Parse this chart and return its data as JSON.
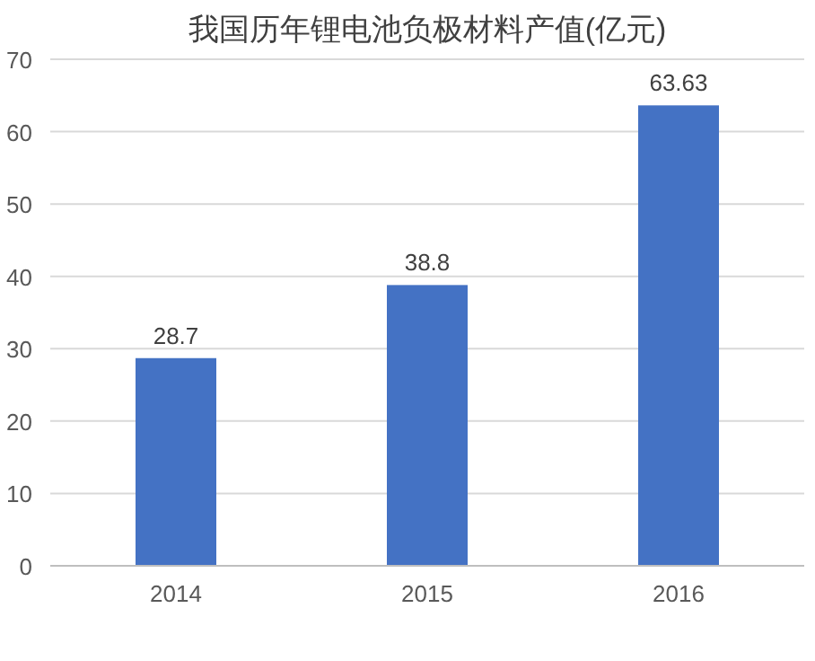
{
  "chart_data": {
    "type": "bar",
    "title": "我国历年锂电池负极材料产值(亿元)",
    "categories": [
      "2014",
      "2015",
      "2016"
    ],
    "values": [
      28.7,
      38.8,
      63.63
    ],
    "color": "#4472c4",
    "ylim": [
      0,
      70
    ],
    "yticks": [
      0,
      10,
      20,
      30,
      40,
      50,
      60,
      70
    ],
    "grid": "y",
    "data_labels": true
  }
}
